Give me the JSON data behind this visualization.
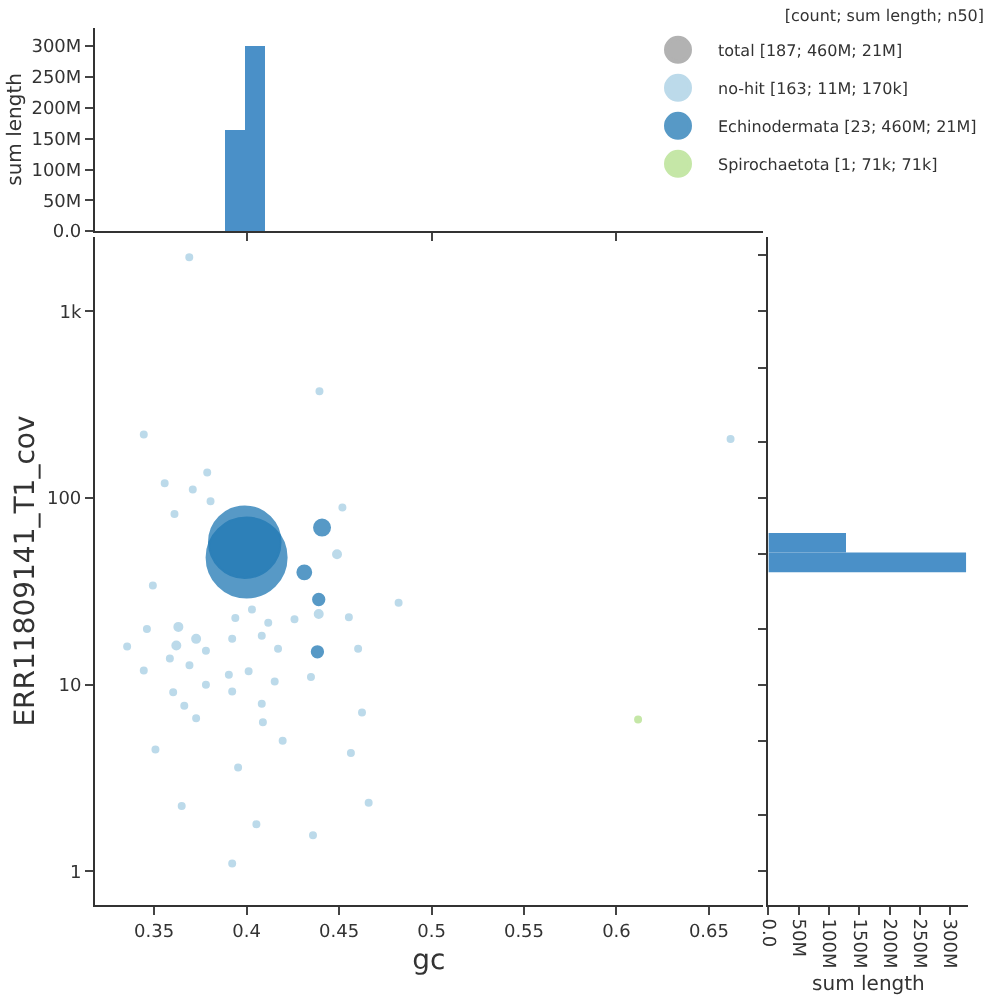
{
  "chart_data": [
    {
      "type": "bubble",
      "xlabel": "gc",
      "ylabel": "ERR11809141_T1_cov",
      "log": "y",
      "xlim": [
        0.318,
        0.679
      ],
      "ylim": [
        0.66,
        2500
      ],
      "xticks": [
        0.35,
        0.4,
        0.45,
        0.5,
        0.55,
        0.6,
        0.65
      ],
      "yticks": [
        1,
        10,
        100,
        {
          "value": 1000,
          "label": "1k"
        }
      ],
      "legend": "top right",
      "legend_title": "[count; sum length; n50]",
      "marker": "circle",
      "series": [
        {
          "name": "total [187; 460M; 21M]",
          "color": "#999999"
        },
        {
          "name": "no-hit [163; 11M; 170k]",
          "color": "#a6cee3",
          "x": [
            0.4394,
            0.3444,
            0.3557,
            0.3709,
            0.3787,
            0.361,
            0.3805,
            0.4518,
            0.4489,
            0.3493,
            0.439,
            0.4822,
            0.4553,
            0.3461,
            0.3631,
            0.3939,
            0.4029,
            0.4117,
            0.4259,
            0.3354,
            0.362,
            0.3727,
            0.378,
            0.3922,
            0.4082,
            0.417,
            0.4603,
            0.3444,
            0.3585,
            0.3691,
            0.378,
            0.3904,
            0.4011,
            0.4152,
            0.4348,
            0.3603,
            0.3922,
            0.3663,
            0.4082,
            0.4624,
            0.3727,
            0.4088,
            0.4195,
            0.3507,
            0.4564,
            0.3954,
            0.6617,
            0.369,
            0.3649,
            0.4053,
            0.4359,
            0.466,
            0.3922
          ],
          "values": [
            373,
            219,
            120,
            111,
            137,
            82,
            96,
            89,
            50,
            34,
            23.9,
            27.5,
            23,
            19.9,
            20.4,
            22.8,
            25.3,
            21.5,
            22.4,
            16,
            16.2,
            17.6,
            15.2,
            17.6,
            18.3,
            15.6,
            15.6,
            11.9,
            13.8,
            12.7,
            10,
            11.3,
            11.8,
            10.4,
            11,
            9.1,
            9.2,
            7.7,
            7.9,
            7.1,
            6.6,
            6.3,
            5,
            4.5,
            4.3,
            3.6,
            207,
            1950,
            2.24,
            1.79,
            1.56,
            2.33,
            1.1
          ],
          "sizes": [
            0.003,
            0.003,
            0.003,
            0.003,
            0.003,
            0.003,
            0.003,
            0.003,
            0.01,
            0.003,
            0.01,
            0.003,
            0.003,
            0.003,
            0.01,
            0.003,
            0.003,
            0.003,
            0.005,
            0.003,
            0.01,
            0.01,
            0.005,
            0.005,
            0.003,
            0.005,
            0.003,
            0.003,
            0.005,
            0.003,
            0.003,
            0.003,
            0.003,
            0.003,
            0.003,
            0.003,
            0.003,
            0.003,
            0.003,
            0.003,
            0.003,
            0.003,
            0.003,
            0.003,
            0.003,
            0.003,
            0.003,
            0.003,
            0.003,
            0.003,
            0.003,
            0.003,
            0.003
          ]
        },
        {
          "name": "Echinodermata [23; 460M; 21M]",
          "color": "#1f78b4",
          "x": [
            0.4,
            0.399,
            0.4408,
            0.4312,
            0.439,
            0.4383
          ],
          "values": [
            48,
            58,
            69.5,
            40,
            28.6,
            15
          ],
          "sizes": [
            1,
            0.8,
            0.04,
            0.03,
            0.02,
            0.02
          ]
        },
        {
          "name": "Spirochaetota [1; 71k; 71k]",
          "color": "#b2df8a",
          "x": [
            0.6117
          ],
          "values": [
            6.5
          ],
          "sizes": [
            0.003
          ]
        }
      ]
    },
    {
      "type": "histogram",
      "ylabel": "sum length",
      "bins": [
        0.388,
        0.399,
        0.41
      ],
      "values": [
        165000000,
        300000000
      ],
      "color": "#4a90c8",
      "xlim": [
        0.318,
        0.679
      ],
      "ylim": [
        0,
        330000000
      ],
      "tick_labels": "y",
      "yticks": [
        {
          "value": 0,
          "label": "0.0"
        },
        {
          "value": 50000000,
          "label": "50M"
        },
        {
          "value": 100000000,
          "label": "100M"
        },
        {
          "value": 150000000,
          "label": "150M"
        },
        {
          "value": 200000000,
          "label": "200M"
        },
        {
          "value": 250000000,
          "label": "250M"
        },
        {
          "value": 300000000,
          "label": "300M"
        }
      ]
    },
    {
      "type": "histogram",
      "orientation": "horizontal",
      "xlabel": "sum length",
      "log": "y",
      "bins": [
        40,
        51,
        65
      ],
      "values": [
        326000000,
        128000000
      ],
      "color": "#4a90c8",
      "ylim": [
        0.66,
        2500
      ],
      "xlim": [
        0,
        330000000
      ],
      "tick_labels": "x",
      "xticks": [
        {
          "value": 0,
          "label": "0.0"
        },
        {
          "value": 50000000,
          "label": "50M"
        },
        {
          "value": 100000000,
          "label": "100M"
        },
        {
          "value": 150000000,
          "label": "150M"
        },
        {
          "value": 200000000,
          "label": "200M"
        },
        {
          "value": 250000000,
          "label": "250M"
        },
        {
          "value": 300000000,
          "label": "300M"
        }
      ]
    }
  ]
}
